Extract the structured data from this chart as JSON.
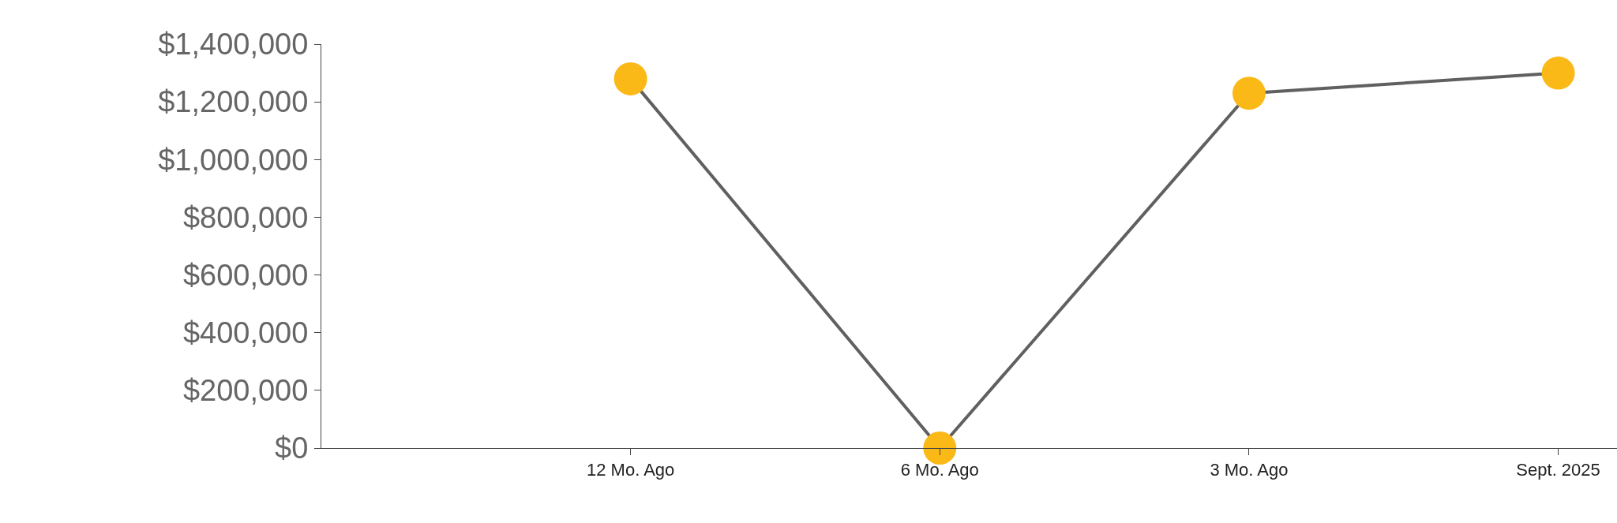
{
  "chart_data": {
    "type": "line",
    "categories": [
      null,
      "12 Mo. Ago",
      "6 Mo. Ago",
      "3 Mo. Ago",
      "Sept. 2025"
    ],
    "series": [
      {
        "color": "#fbb917",
        "values": [
          null,
          1280000,
          0,
          1230000,
          1300000
        ]
      }
    ],
    "ylim": [
      0,
      1400000
    ],
    "yticks": [
      {
        "value": 0,
        "label": "$0"
      },
      {
        "value": 200000,
        "label": "$200,000"
      },
      {
        "value": 400000,
        "label": "$400,000"
      },
      {
        "value": 600000,
        "label": "$600,000"
      },
      {
        "value": 800000,
        "label": "$800,000"
      },
      {
        "value": 1000000,
        "label": "$1,000,000"
      },
      {
        "value": 1200000,
        "label": "$1,200,000"
      },
      {
        "value": 1400000,
        "label": "$1,400,000"
      }
    ],
    "marker": "circle",
    "line_style": "solid"
  }
}
